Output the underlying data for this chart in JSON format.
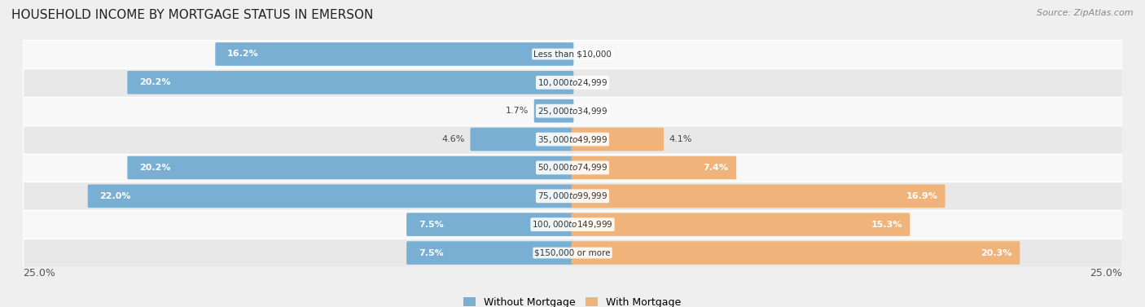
{
  "title": "HOUSEHOLD INCOME BY MORTGAGE STATUS IN EMERSON",
  "source": "Source: ZipAtlas.com",
  "categories": [
    "Less than $10,000",
    "$10,000 to $24,999",
    "$25,000 to $34,999",
    "$35,000 to $49,999",
    "$50,000 to $74,999",
    "$75,000 to $99,999",
    "$100,000 to $149,999",
    "$150,000 or more"
  ],
  "without_mortgage": [
    16.2,
    20.2,
    1.7,
    4.6,
    20.2,
    22.0,
    7.5,
    7.5
  ],
  "with_mortgage": [
    0.0,
    0.0,
    0.0,
    4.1,
    7.4,
    16.9,
    15.3,
    20.3
  ],
  "color_without": "#7aafd4",
  "color_with": "#f0b47a",
  "axis_max": 25.0,
  "legend_labels": [
    "Without Mortgage",
    "With Mortgage"
  ],
  "bg_color": "#efefef",
  "row_bg_even": "#f8f8f8",
  "row_bg_odd": "#e8e8e8"
}
